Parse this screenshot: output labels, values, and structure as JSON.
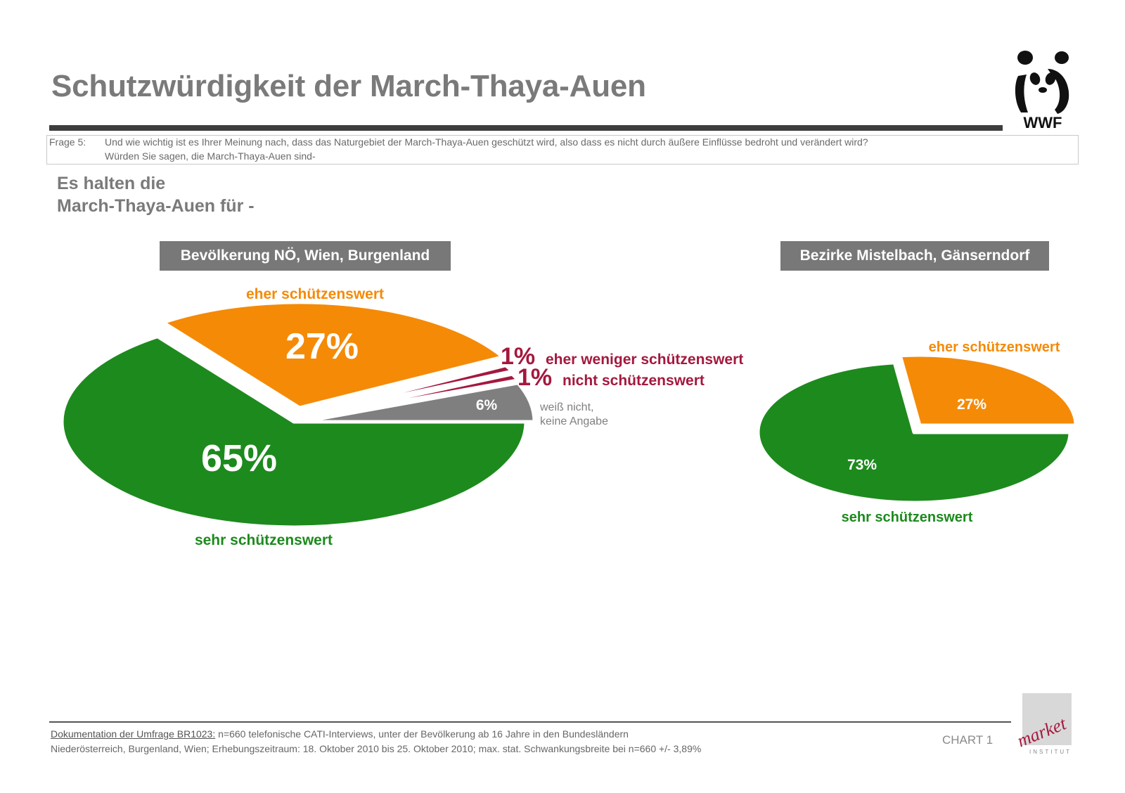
{
  "header": {
    "title": "Schutzwürdigkeit der March-Thaya-Auen"
  },
  "question": {
    "prefix": "Frage 5:",
    "line1": "Und wie wichtig ist es Ihrer Meinung nach, dass das Naturgebiet der March-Thaya-Auen geschützt wird, also dass es nicht durch äußere Einflüsse bedroht und verändert wird?",
    "line2": "Würden Sie sagen, die March-Thaya-Auen sind-"
  },
  "intro": {
    "line1": "Es halten die",
    "line2": "March-Thaya-Auen für -"
  },
  "colors": {
    "sehr": "#1d8a1d",
    "eher": "#f58a07",
    "weniger": "#a4183e",
    "nicht": "#a4183e",
    "wn": "#7f7f7f",
    "label_gray": "#808080"
  },
  "logos": {
    "wwf_text": "WWF",
    "market_text": "market",
    "market_sub": "INSTITUT"
  },
  "footer": {
    "doc_link": "Dokumentation der Umfrage BR1023:",
    "line1_rest": " n=660 telefonische CATI-Interviews, unter der Bevölkerung ab 16 Jahre in den Bundesländern",
    "line2": "Niederösterreich, Burgenland, Wien; Erhebungszeitraum: 18. Oktober 2010 bis 25. Oktober 2010; max. stat. Schwankungsbreite bei n=660 +/- 3,89%",
    "chart_number": "CHART 1"
  },
  "chart_data": [
    {
      "type": "pie",
      "title": "Bevölkerung NÖ, Wien, Burgenland",
      "slices": [
        {
          "key": "sehr",
          "label": "sehr schützenswert",
          "value": 65,
          "value_label": "65%"
        },
        {
          "key": "eher",
          "label": "eher schützenswert",
          "value": 27,
          "value_label": "27%"
        },
        {
          "key": "weniger",
          "label": "eher weniger schützenswert",
          "value": 1,
          "value_label": "1%"
        },
        {
          "key": "nicht",
          "label": "nicht schützenswert",
          "value": 1,
          "value_label": "1%"
        },
        {
          "key": "wn",
          "label": "weiß nicht,",
          "label2": "keine Angabe",
          "value": 6,
          "value_label": "6%"
        }
      ]
    },
    {
      "type": "pie",
      "title": "Bezirke Mistelbach, Gänserndorf",
      "slices": [
        {
          "key": "sehr",
          "label": "sehr schützenswert",
          "value": 73,
          "value_label": "73%"
        },
        {
          "key": "eher",
          "label": "eher schützenswert",
          "value": 27,
          "value_label": "27%"
        }
      ]
    }
  ]
}
